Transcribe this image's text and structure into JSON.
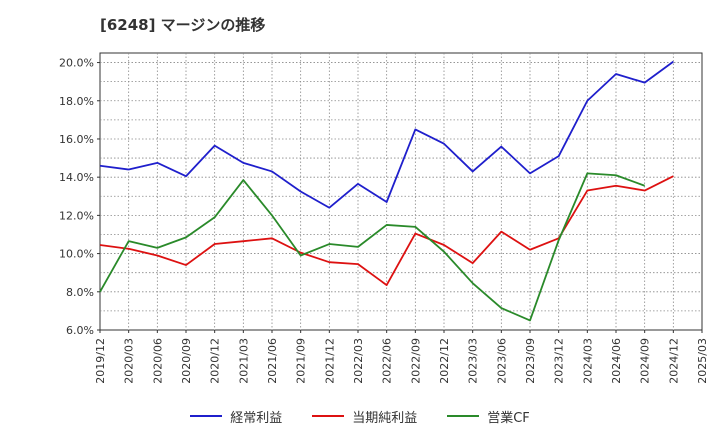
{
  "title": "[6248]  マージンの推移",
  "colors": {
    "series1": "#1f1fcc",
    "series2": "#dd1111",
    "series3": "#2a8a2a"
  },
  "chart_data": {
    "type": "line",
    "title": "[6248]  マージンの推移",
    "x": [
      "2019/12",
      "2020/03",
      "2020/06",
      "2020/09",
      "2020/12",
      "2021/03",
      "2021/06",
      "2021/09",
      "2021/12",
      "2022/03",
      "2022/06",
      "2022/09",
      "2022/12",
      "2023/03",
      "2023/06",
      "2023/09",
      "2023/12",
      "2024/03",
      "2024/06",
      "2024/09",
      "2024/12",
      "2025/03"
    ],
    "ylim": [
      6.0,
      20.5
    ],
    "yticks": [
      "6.0%",
      "8.0%",
      "10.0%",
      "12.0%",
      "14.0%",
      "16.0%",
      "18.0%",
      "20.0%"
    ],
    "ytick_values": [
      6,
      8,
      10,
      12,
      14,
      16,
      18,
      20
    ],
    "grid": true,
    "legend_position": "bottom",
    "series": [
      {
        "name": "経常利益",
        "color": "#1f1fcc",
        "values": [
          14.6,
          14.4,
          14.75,
          14.05,
          15.65,
          14.75,
          14.3,
          13.25,
          12.4,
          13.65,
          12.7,
          16.5,
          15.75,
          14.3,
          15.6,
          14.2,
          15.1,
          18.0,
          19.4,
          18.95,
          20.05,
          null
        ]
      },
      {
        "name": "当期純利益",
        "color": "#dd1111",
        "values": [
          10.45,
          10.25,
          9.9,
          9.4,
          10.5,
          10.65,
          10.8,
          10.05,
          9.55,
          9.45,
          8.35,
          11.05,
          10.45,
          9.5,
          11.15,
          10.2,
          10.8,
          13.3,
          13.55,
          13.3,
          14.05,
          null
        ]
      },
      {
        "name": "営業CF",
        "color": "#2a8a2a",
        "values": [
          8.0,
          10.65,
          10.3,
          10.85,
          11.9,
          13.85,
          12.0,
          9.9,
          10.5,
          10.35,
          11.5,
          11.4,
          10.1,
          8.45,
          7.15,
          6.5,
          10.7,
          14.2,
          14.1,
          13.55,
          null,
          null
        ]
      }
    ]
  }
}
